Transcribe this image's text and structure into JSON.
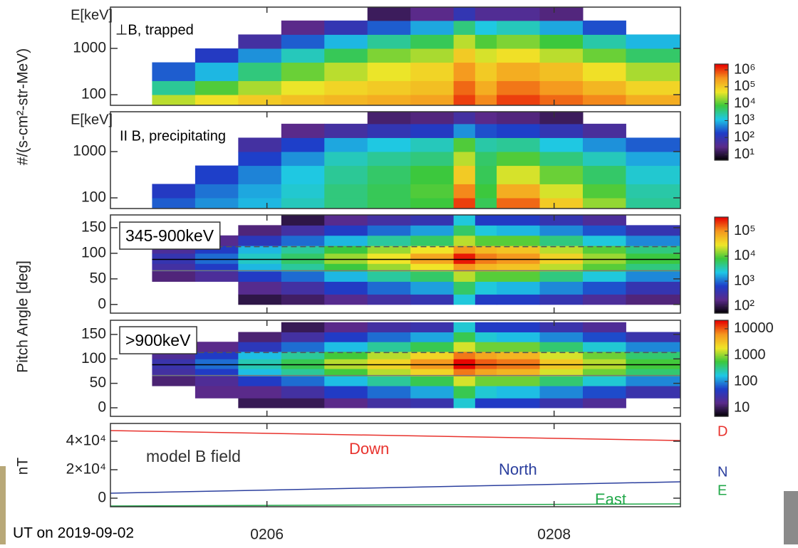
{
  "caption": "UT on 2019-09-02",
  "colormap": [
    "#000000",
    "#5a2a8a",
    "#1e3cc8",
    "#1ec8e6",
    "#3cc83c",
    "#f0e628",
    "#f5961e",
    "#e60000"
  ],
  "chart_data": [
    {
      "type": "heatmap",
      "y_unit": "E[keV]",
      "ylabel": "#/(s-cm²-str-MeV)",
      "annotation": "⊥B, trapped",
      "ylog": true,
      "ylim": [
        58.8,
        7800
      ],
      "yticks": [
        100,
        1000
      ],
      "xlim": [
        4.91,
        8.88
      ],
      "x_edges": [
        5.2,
        5.5,
        5.8,
        6.1,
        6.4,
        6.7,
        7.0,
        7.3,
        7.45,
        7.6,
        7.9,
        8.2,
        8.5,
        8.88
      ],
      "y_edges": [
        60,
        100,
        200,
        500,
        1000,
        2000,
        4000,
        7800
      ],
      "z": [
        [
          30000.0,
          60000.0,
          100000.0,
          130000.0,
          160000.0,
          200000.0,
          250000.0,
          1000000.0,
          400000.0,
          1000000.0,
          600000.0,
          400000.0,
          200000.0
        ],
        [
          3000.0,
          10000.0,
          25000.0,
          50000.0,
          80000.0,
          100000.0,
          130000.0,
          600000.0,
          200000.0,
          500000.0,
          300000.0,
          160000.0,
          80000.0
        ],
        [
          300,
          1000.0,
          4000.0,
          13000.0,
          30000.0,
          50000.0,
          80000.0,
          300000.0,
          100000.0,
          200000.0,
          130000.0,
          60000.0,
          25000.0
        ],
        [
          null,
          160,
          600,
          2000.0,
          6000.0,
          16000.0,
          25000.0,
          100000.0,
          40000.0,
          60000.0,
          30000.0,
          13000.0,
          5000.0
        ],
        [
          null,
          null,
          60,
          300,
          1000.0,
          3000.0,
          6000.0,
          30000.0,
          10000.0,
          16000.0,
          8000.0,
          2500.0,
          1000.0
        ],
        [
          null,
          null,
          null,
          30,
          100,
          300,
          800,
          4000.0,
          1300.0,
          2000.0,
          800,
          250,
          null
        ],
        [
          null,
          null,
          null,
          null,
          null,
          16,
          30,
          100,
          40,
          40,
          25,
          null,
          null
        ]
      ],
      "colorbar": {
        "log": true,
        "clim": [
          4.6,
          2200000.0
        ],
        "cticks": [
          {
            "value": 10,
            "label": "10¹"
          },
          {
            "value": 100,
            "label": "10²"
          },
          {
            "value": 1000,
            "label": "10³"
          },
          {
            "value": 10000,
            "label": "10⁴"
          },
          {
            "value": 100000,
            "label": "10⁵"
          },
          {
            "value": 1000000,
            "label": "10⁶"
          }
        ]
      }
    },
    {
      "type": "heatmap",
      "y_unit": "E[keV]",
      "annotation": "II B, precipitating",
      "ylog": true,
      "ylim": [
        58.8,
        7270
      ],
      "yticks": [
        100,
        1000
      ],
      "xlim": [
        4.91,
        8.88
      ],
      "x_edges": [
        5.2,
        5.5,
        5.8,
        6.1,
        6.4,
        6.7,
        7.0,
        7.3,
        7.45,
        7.6,
        7.9,
        8.2,
        8.5,
        8.88
      ],
      "y_edges": [
        60,
        100,
        200,
        500,
        1000,
        2000,
        4000,
        7270
      ],
      "z": [
        [
          300,
          600,
          1000.0,
          2000.0,
          4000.0,
          6000.0,
          8000.0,
          1000000.0,
          6000.0,
          600000.0,
          100000.0,
          20000.0,
          3000.0
        ],
        [
          160,
          400,
          800,
          1600.0,
          4000.0,
          6000.0,
          10000.0,
          400000.0,
          8000.0,
          200000.0,
          40000.0,
          10000.0,
          2500.0
        ],
        [
          null,
          200,
          500,
          1300.0,
          3000.0,
          5000.0,
          8000.0,
          100000.0,
          6000.0,
          40000.0,
          13000.0,
          5000.0,
          1600.0
        ],
        [
          null,
          null,
          200,
          600,
          2000.0,
          3000.0,
          4000.0,
          30000.0,
          5000.0,
          10000.0,
          4000.0,
          2000.0,
          800
        ],
        [
          null,
          null,
          60,
          200,
          800,
          1300.0,
          2000.0,
          10000.0,
          2500.0,
          3000.0,
          1300.0,
          600,
          300
        ],
        [
          null,
          null,
          null,
          30,
          60,
          100,
          160,
          600,
          250,
          200,
          100,
          50,
          null
        ],
        [
          null,
          null,
          null,
          null,
          null,
          20,
          25,
          60,
          30,
          25,
          16,
          null,
          null
        ]
      ]
    },
    {
      "type": "heatmap",
      "ylabel": "Pitch Angle [deg]",
      "annotation": "345-900keV",
      "annotation_box": true,
      "ylim": [
        -17,
        175
      ],
      "yticks": [
        0,
        50,
        100,
        150
      ],
      "xlim": [
        4.91,
        8.88
      ],
      "x_edges": [
        5.2,
        5.5,
        5.8,
        6.1,
        6.4,
        6.7,
        7.0,
        7.3,
        7.45,
        7.6,
        7.9,
        8.2,
        8.5,
        8.88
      ],
      "y_edges": [
        0,
        20,
        45,
        65,
        80,
        100,
        115,
        135,
        155,
        175
      ],
      "z": [
        [
          null,
          null,
          100,
          130,
          200,
          300,
          400,
          2500.0,
          600,
          600,
          400,
          250,
          160
        ],
        [
          null,
          null,
          200,
          300,
          600,
          1000.0,
          1600.0,
          6000.0,
          2500.0,
          2000.0,
          1300.0,
          800,
          400
        ],
        [
          160,
          250,
          600,
          1000.0,
          2000.0,
          4000.0,
          6000.0,
          20000.0,
          10000.0,
          10000.0,
          5000.0,
          2500.0,
          1300.0
        ],
        [
          300,
          600,
          2000.0,
          4000.0,
          8000.0,
          16000.0,
          30000.0,
          100000.0,
          60000.0,
          50000.0,
          20000.0,
          10000.0,
          5000.0
        ],
        [
          400,
          1000.0,
          3000.0,
          6000.0,
          16000.0,
          30000.0,
          80000.0,
          300000.0,
          130000.0,
          100000.0,
          40000.0,
          16000.0,
          8000.0
        ],
        [
          250,
          600,
          2000.0,
          4000.0,
          8000.0,
          16000.0,
          30000.0,
          100000.0,
          60000.0,
          50000.0,
          20000.0,
          10000.0,
          5000.0
        ],
        [
          null,
          200,
          500,
          1000.0,
          2000.0,
          4000.0,
          6000.0,
          20000.0,
          10000.0,
          10000.0,
          5000.0,
          2500.0,
          1300.0
        ],
        [
          null,
          null,
          160,
          300,
          600,
          1000.0,
          1600.0,
          6000.0,
          2500.0,
          2000.0,
          1300.0,
          800,
          400
        ],
        [
          null,
          null,
          null,
          100,
          200,
          300,
          400,
          2500.0,
          600,
          600,
          400,
          250,
          null
        ]
      ],
      "reference_lines": [
        {
          "value": 88,
          "color": "#000000",
          "dashed": false
        },
        {
          "value": 66,
          "color": "#777777",
          "dashed": false
        },
        {
          "value": 113,
          "color": "#555555",
          "dashed": true
        }
      ],
      "colorbar": {
        "log": true,
        "clim": [
          52,
          370000.0
        ],
        "cticks": [
          {
            "value": 100,
            "label": "10²"
          },
          {
            "value": 1000,
            "label": "10³"
          },
          {
            "value": 10000,
            "label": "10⁴"
          },
          {
            "value": 100000,
            "label": "10⁵"
          }
        ]
      }
    },
    {
      "type": "heatmap",
      "annotation": ">900keV",
      "annotation_box": true,
      "ylim": [
        -17.5,
        179
      ],
      "yticks": [
        0,
        50,
        100,
        150
      ],
      "xlim": [
        4.91,
        8.88
      ],
      "x_edges": [
        5.2,
        5.5,
        5.8,
        6.1,
        6.4,
        6.7,
        7.0,
        7.3,
        7.45,
        7.6,
        7.9,
        8.2,
        8.5,
        8.88
      ],
      "y_edges": [
        0,
        20,
        45,
        65,
        80,
        100,
        115,
        135,
        155,
        175
      ],
      "z": [
        [
          null,
          null,
          10,
          10,
          16,
          25,
          30,
          200,
          50,
          50,
          30,
          20,
          null
        ],
        [
          null,
          16,
          16,
          25,
          50,
          80,
          130,
          500,
          200,
          160,
          100,
          60,
          30
        ],
        [
          13,
          20,
          50,
          80,
          160,
          300,
          500,
          1600.0,
          800,
          800,
          400,
          200,
          100
        ],
        [
          25,
          50,
          160,
          300,
          600,
          1300.0,
          2500.0,
          8000.0,
          5000.0,
          4000.0,
          1600.0,
          800,
          400
        ],
        [
          30,
          80,
          250,
          500,
          1300.0,
          2500.0,
          6000.0,
          20000.0,
          10000.0,
          8000.0,
          3000.0,
          1300.0,
          600
        ],
        [
          20,
          50,
          160,
          300,
          600,
          1300.0,
          2500.0,
          8000.0,
          5000.0,
          4000.0,
          1600.0,
          800,
          400
        ],
        [
          null,
          16,
          40,
          80,
          160,
          300,
          500,
          1600.0,
          800,
          800,
          400,
          200,
          100
        ],
        [
          null,
          null,
          13,
          25,
          50,
          80,
          130,
          500,
          200,
          160,
          100,
          60,
          30
        ],
        [
          null,
          null,
          null,
          10,
          16,
          25,
          30,
          200,
          50,
          50,
          30,
          20,
          null
        ]
      ],
      "reference_lines": [
        {
          "value": 88,
          "color": "#000000",
          "dashed": false
        },
        {
          "value": 66,
          "color": "#777777",
          "dashed": false
        },
        {
          "value": 113,
          "color": "#555555",
          "dashed": true
        }
      ],
      "colorbar": {
        "log": true,
        "clim": [
          4.8,
          21000.0
        ],
        "cticks": [
          10,
          100,
          1000,
          10000
        ]
      }
    },
    {
      "type": "line",
      "ylabel": "nT",
      "annotation": "model B field",
      "xlim": [
        4.91,
        8.88
      ],
      "xticks": [
        {
          "value": 6,
          "label": "0206"
        },
        {
          "value": 8,
          "label": "0208"
        }
      ],
      "ylim": [
        -6000,
        52500
      ],
      "yticks": [
        0,
        {
          "value": 20000,
          "label": "2×10⁴"
        },
        {
          "value": 40000,
          "label": "4×10⁴"
        }
      ],
      "x": [
        4.91,
        8.88
      ],
      "series": [
        {
          "name": "Down",
          "short": "D",
          "color": "#e8322d",
          "values": [
            47500,
            40500
          ]
        },
        {
          "name": "North",
          "short": "N",
          "color": "#2b3f9e",
          "values": [
            3500,
            11500
          ]
        },
        {
          "name": "East",
          "short": "E",
          "color": "#22a84a",
          "values": [
            -5500,
            -4000
          ]
        }
      ]
    }
  ]
}
